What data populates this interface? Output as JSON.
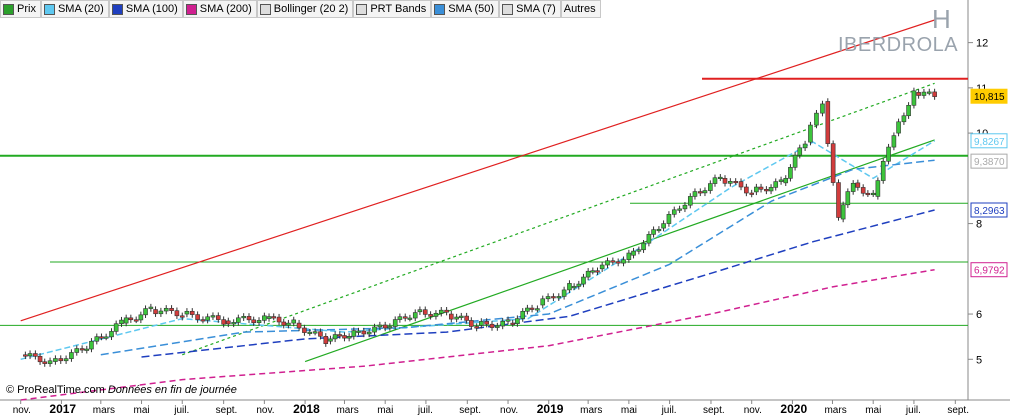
{
  "legend": [
    {
      "label": "Prix",
      "color": "#2ca02c"
    },
    {
      "label": "SMA (20)",
      "color": "#5ec8f0"
    },
    {
      "label": "SMA (100)",
      "color": "#1f3fbf"
    },
    {
      "label": "SMA (200)",
      "color": "#d02090"
    },
    {
      "label": "Bollinger (20 2)",
      "color": "#dddddd"
    },
    {
      "label": "PRT Bands",
      "color": "#dddddd"
    },
    {
      "label": "SMA (50)",
      "color": "#3a8fd8"
    },
    {
      "label": "SMA (7)",
      "color": "#dddddd"
    },
    {
      "label": "Autres",
      "color": null
    }
  ],
  "watermark": {
    "letter": "H",
    "name": "IBERDROLA"
  },
  "footer": {
    "brand": "© ProRealTime.com",
    "note": "Données en fin de journée"
  },
  "chart_data": {
    "type": "candlestick",
    "ylim": [
      4.1,
      12.5
    ],
    "y_ticks": [
      "5",
      "6",
      "8",
      "10",
      "11",
      "12"
    ],
    "x_ticks": [
      "nov.",
      "2017",
      "mars",
      "mai",
      "juil.",
      "sept.",
      "nov.",
      "2018",
      "mars",
      "mai",
      "juil.",
      "sept.",
      "nov.",
      "2019",
      "mars",
      "mai",
      "juil.",
      "sept.",
      "nov.",
      "2020",
      "mars",
      "mai",
      "juil.",
      "sept."
    ],
    "price_labels": [
      {
        "value": "10,815",
        "color": "#ffcc00",
        "y": 10.815
      },
      {
        "value": "9,8267",
        "color": "#5ec8f0",
        "y": 9.83
      },
      {
        "value": "9,3870",
        "color": "#aaaaaa",
        "y": 9.38
      },
      {
        "value": "8,2963",
        "color": "#1f3fbf",
        "y": 8.3
      },
      {
        "value": "6,9792",
        "color": "#d02090",
        "y": 6.98
      }
    ],
    "series": [
      {
        "name": "Prix",
        "values": [
          {
            "date": "2016-11-01",
            "close": 5.1
          },
          {
            "date": "2016-12-15",
            "close": 4.95
          },
          {
            "date": "2017-02-01",
            "close": 5.2
          },
          {
            "date": "2017-04-01",
            "close": 5.8
          },
          {
            "date": "2017-05-15",
            "close": 6.1
          },
          {
            "date": "2017-07-01",
            "close": 6.0
          },
          {
            "date": "2017-09-01",
            "close": 5.85
          },
          {
            "date": "2017-11-01",
            "close": 5.9
          },
          {
            "date": "2017-12-15",
            "close": 5.8
          },
          {
            "date": "2018-02-01",
            "close": 5.4
          },
          {
            "date": "2018-03-15",
            "close": 5.6
          },
          {
            "date": "2018-05-01",
            "close": 5.7
          },
          {
            "date": "2018-06-15",
            "close": 6.05
          },
          {
            "date": "2018-08-01",
            "close": 6.0
          },
          {
            "date": "2018-09-15",
            "close": 5.75
          },
          {
            "date": "2018-11-01",
            "close": 5.8
          },
          {
            "date": "2018-12-15",
            "close": 6.2
          },
          {
            "date": "2019-02-01",
            "close": 6.6
          },
          {
            "date": "2019-03-15",
            "close": 7.0
          },
          {
            "date": "2019-05-01",
            "close": 7.3
          },
          {
            "date": "2019-06-15",
            "close": 7.9
          },
          {
            "date": "2019-08-01",
            "close": 8.6
          },
          {
            "date": "2019-09-15",
            "close": 9.0
          },
          {
            "date": "2019-11-01",
            "close": 8.7
          },
          {
            "date": "2019-12-15",
            "close": 8.9
          },
          {
            "date": "2020-01-20",
            "close": 9.8
          },
          {
            "date": "2020-02-15",
            "close": 10.7
          },
          {
            "date": "2020-03-10",
            "close": 8.1
          },
          {
            "date": "2020-04-01",
            "close": 8.9
          },
          {
            "date": "2020-05-01",
            "close": 8.6
          },
          {
            "date": "2020-06-01",
            "close": 10.0
          },
          {
            "date": "2020-07-01",
            "close": 10.9
          },
          {
            "date": "2020-08-01",
            "close": 10.815
          }
        ]
      },
      {
        "name": "SMA (20)",
        "values": [
          {
            "date": "2016-11-01",
            "value": 5.0
          },
          {
            "date": "2017-07-01",
            "value": 5.9
          },
          {
            "date": "2018-03-01",
            "value": 5.6
          },
          {
            "date": "2018-12-01",
            "value": 5.9
          },
          {
            "date": "2019-06-01",
            "value": 7.6
          },
          {
            "date": "2019-10-01",
            "value": 8.8
          },
          {
            "date": "2020-02-01",
            "value": 9.8
          },
          {
            "date": "2020-05-01",
            "value": 9.0
          },
          {
            "date": "2020-08-01",
            "value": 9.83
          }
        ]
      },
      {
        "name": "SMA (50)",
        "values": [
          {
            "date": "2017-03-01",
            "value": 5.1
          },
          {
            "date": "2017-10-01",
            "value": 5.6
          },
          {
            "date": "2018-06-01",
            "value": 5.7
          },
          {
            "date": "2019-01-01",
            "value": 6.0
          },
          {
            "date": "2019-07-01",
            "value": 7.1
          },
          {
            "date": "2019-12-01",
            "value": 8.5
          },
          {
            "date": "2020-04-01",
            "value": 9.2
          },
          {
            "date": "2020-08-01",
            "value": 9.4
          }
        ]
      },
      {
        "name": "SMA (100)",
        "values": [
          {
            "date": "2017-05-01",
            "value": 5.05
          },
          {
            "date": "2018-01-01",
            "value": 5.45
          },
          {
            "date": "2018-08-01",
            "value": 5.6
          },
          {
            "date": "2019-02-01",
            "value": 5.95
          },
          {
            "date": "2019-09-01",
            "value": 6.9
          },
          {
            "date": "2020-02-01",
            "value": 7.6
          },
          {
            "date": "2020-08-01",
            "value": 8.3
          }
        ]
      },
      {
        "name": "SMA (200)",
        "values": [
          {
            "date": "2016-11-01",
            "value": 4.1
          },
          {
            "date": "2017-07-01",
            "value": 4.55
          },
          {
            "date": "2018-04-01",
            "value": 4.85
          },
          {
            "date": "2019-01-01",
            "value": 5.3
          },
          {
            "date": "2019-09-01",
            "value": 6.0
          },
          {
            "date": "2020-03-01",
            "value": 6.6
          },
          {
            "date": "2020-08-01",
            "value": 6.98
          }
        ]
      }
    ],
    "horizontal_levels": [
      {
        "value": 11.2,
        "color": "#e02020"
      },
      {
        "value": 9.5,
        "color": "#22aa22"
      },
      {
        "value": 8.45,
        "color": "#22aa22"
      },
      {
        "value": 7.15,
        "color": "#22aa22"
      },
      {
        "value": 5.75,
        "color": "#22aa22"
      }
    ],
    "trendlines": [
      {
        "from": {
          "date": "2016-11-01",
          "value": 5.85
        },
        "to": {
          "date": "2020-08-01",
          "value": 12.5
        },
        "color": "#e02020"
      },
      {
        "from": {
          "date": "2018-01-01",
          "value": 4.95
        },
        "to": {
          "date": "2020-08-01",
          "value": 9.85
        },
        "color": "#22aa22"
      },
      {
        "from": {
          "date": "2017-07-01",
          "value": 5.1
        },
        "to": {
          "date": "2020-08-01",
          "value": 11.1
        },
        "color": "#22aa22",
        "dashed": true
      }
    ]
  }
}
